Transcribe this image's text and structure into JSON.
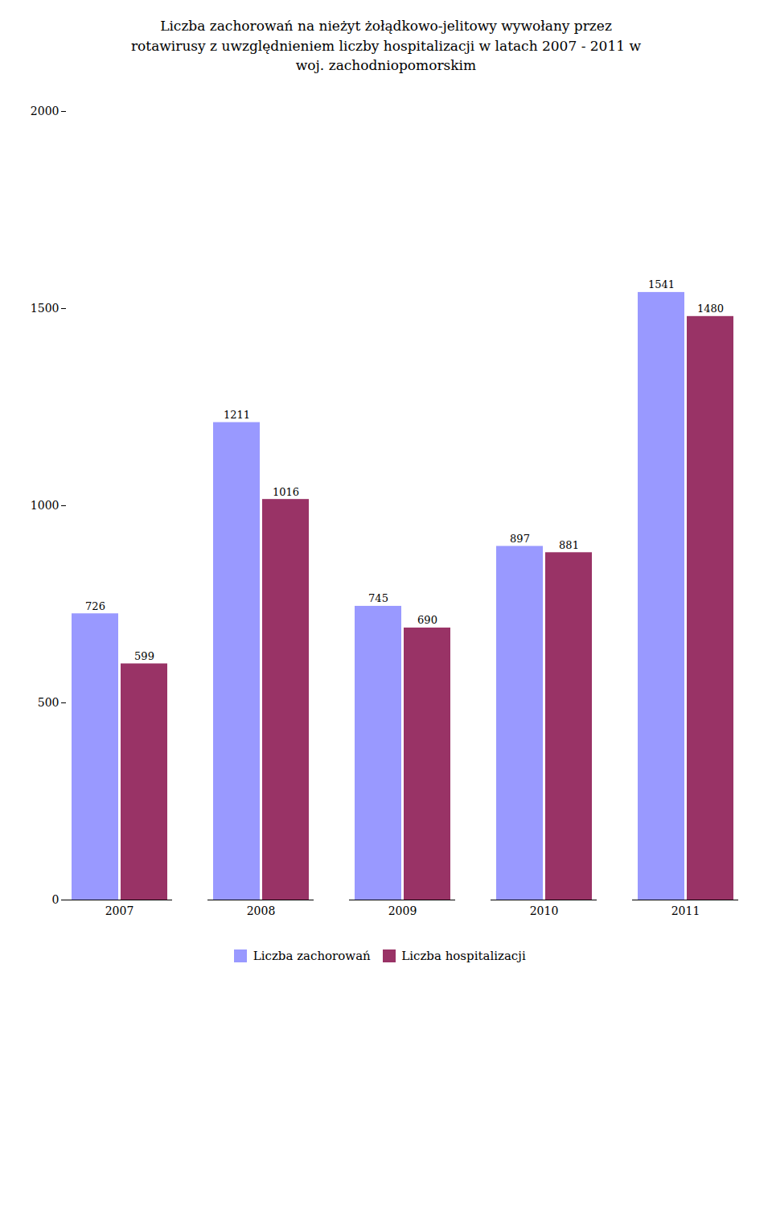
{
  "chart_data": {
    "type": "bar",
    "title": "Liczba zachorowań na nieżyt żołądkowo-jelitowy wywołany przez\nrotawirusy z uwzględnieniem liczby hospitalizacji w latach 2007 - 2011 w\nwoj. zachodniopomorskim",
    "categories": [
      "2007",
      "2008",
      "2009",
      "2010",
      "2011"
    ],
    "series": [
      {
        "name": "Liczba zachorowań",
        "color": "#9999FF",
        "values": [
          726,
          1211,
          745,
          897,
          1541
        ]
      },
      {
        "name": "Liczba hospitalizacji",
        "color": "#993366",
        "values": [
          599,
          1016,
          690,
          881,
          1480
        ]
      }
    ],
    "ylim": [
      0,
      2000
    ],
    "yticks": [
      0,
      500,
      1000,
      1500,
      2000
    ],
    "data_labels": true,
    "legend": "bottom",
    "grid": false
  }
}
